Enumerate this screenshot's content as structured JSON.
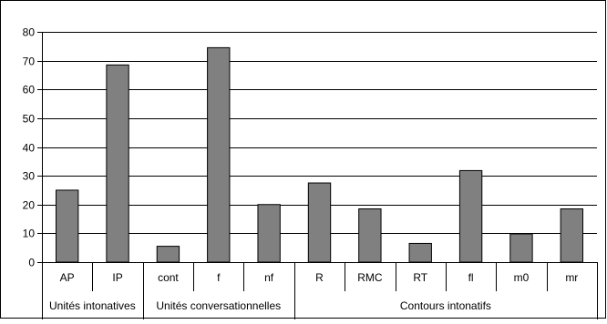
{
  "chart_data": {
    "type": "bar",
    "categories": [
      "AP",
      "IP",
      "cont",
      "f",
      "nf",
      "R",
      "RMC",
      "RT",
      "fl",
      "m0",
      "mr"
    ],
    "values": [
      25,
      68.5,
      5.5,
      74.5,
      20,
      27.5,
      18.5,
      6.5,
      31.8,
      9.8,
      18.5
    ],
    "groups": [
      {
        "label": "Unités intonatives",
        "size": 2
      },
      {
        "label": "Unités conversationnelles",
        "size": 3
      },
      {
        "label": "Contours intonatifs",
        "size": 6
      }
    ],
    "ylim": [
      0,
      80
    ],
    "yticks": [
      0,
      10,
      20,
      30,
      40,
      50,
      60,
      70,
      80
    ],
    "grid": true,
    "legend": "none",
    "title": "",
    "xlabel": "",
    "ylabel": "",
    "colors": {
      "bar": "#808080",
      "bar_stroke": "#000000",
      "grid": "#000000",
      "axis": "#000000"
    }
  }
}
